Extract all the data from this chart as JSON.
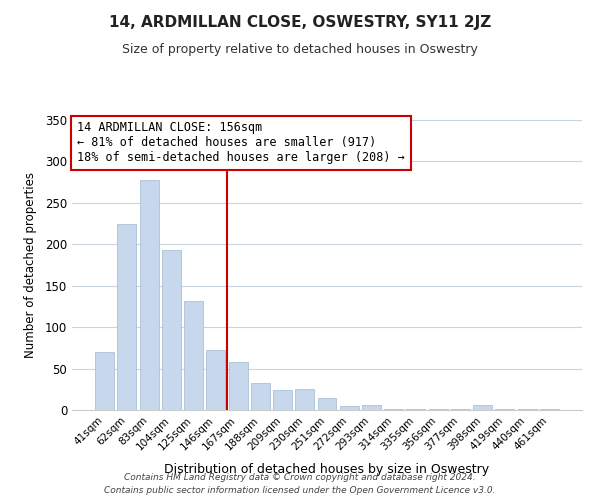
{
  "title": "14, ARDMILLAN CLOSE, OSWESTRY, SY11 2JZ",
  "subtitle": "Size of property relative to detached houses in Oswestry",
  "xlabel": "Distribution of detached houses by size in Oswestry",
  "ylabel": "Number of detached properties",
  "bar_labels": [
    "41sqm",
    "62sqm",
    "83sqm",
    "104sqm",
    "125sqm",
    "146sqm",
    "167sqm",
    "188sqm",
    "209sqm",
    "230sqm",
    "251sqm",
    "272sqm",
    "293sqm",
    "314sqm",
    "335sqm",
    "356sqm",
    "377sqm",
    "398sqm",
    "419sqm",
    "440sqm",
    "461sqm"
  ],
  "bar_values": [
    70,
    224,
    278,
    193,
    131,
    73,
    58,
    33,
    24,
    25,
    15,
    5,
    6,
    1,
    1,
    1,
    1,
    6,
    1,
    1,
    1
  ],
  "bar_color_left": "#c8d8ec",
  "bar_color_right": "#c8d8ec",
  "bar_edge_color": "#a0b8d0",
  "vline_position": 6,
  "vline_color": "#cc0000",
  "ylim": [
    0,
    350
  ],
  "yticks": [
    0,
    50,
    100,
    150,
    200,
    250,
    300,
    350
  ],
  "annotation_title": "14 ARDMILLAN CLOSE: 156sqm",
  "annotation_line1": "← 81% of detached houses are smaller (917)",
  "annotation_line2": "18% of semi-detached houses are larger (208) →",
  "annotation_box_color": "#ffffff",
  "annotation_box_edge": "#cc0000",
  "footer_line1": "Contains HM Land Registry data © Crown copyright and database right 2024.",
  "footer_line2": "Contains public sector information licensed under the Open Government Licence v3.0.",
  "background_color": "#ffffff",
  "grid_color": "#c8d4e0",
  "title_fontsize": 11,
  "subtitle_fontsize": 9
}
